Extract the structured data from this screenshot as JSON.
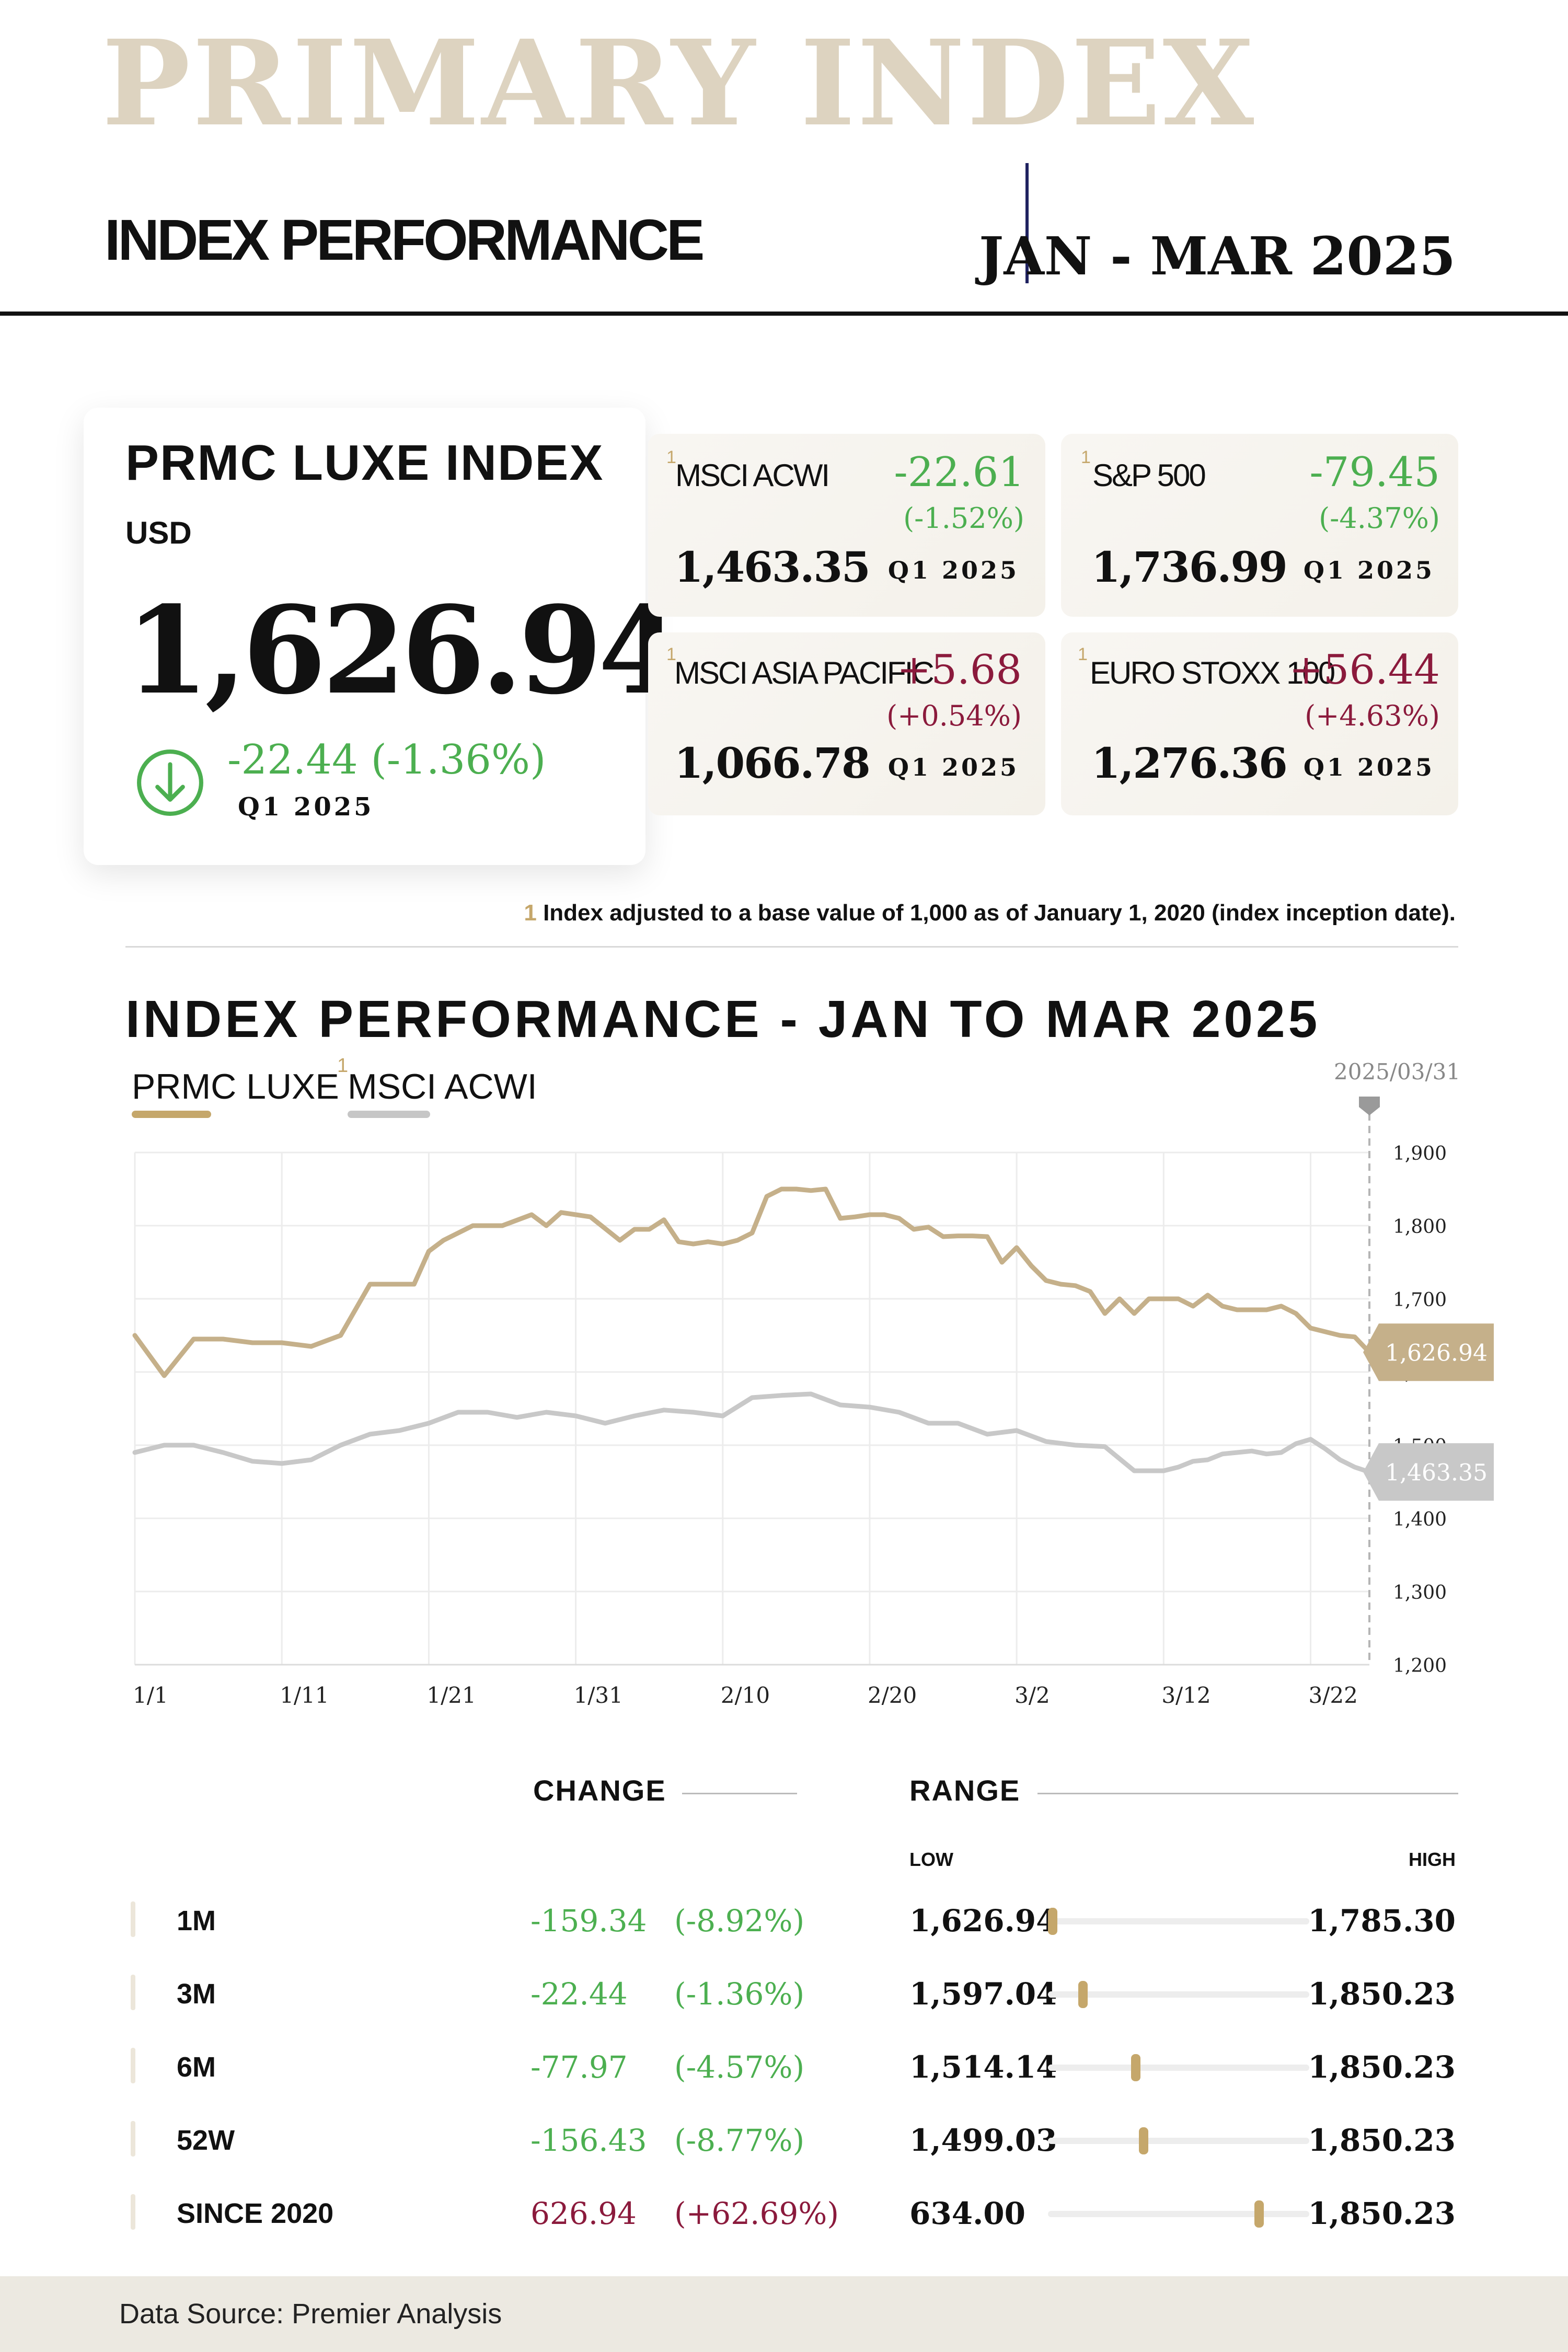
{
  "header": {
    "brand": "PRIMARY INDEX",
    "subtitle": "INDEX PERFORMANCE",
    "period": "JAN - MAR 2025"
  },
  "main_index": {
    "name": "PRMC LUXE INDEX",
    "currency": "USD",
    "value": "1,626.94",
    "change": "-22.44 (-1.36%)",
    "period": "Q1 2025",
    "arrow_icon": "arrow-down-circle-icon",
    "change_color": "#4caf50"
  },
  "cards": [
    {
      "sup": "1",
      "name": "MSCI ACWI",
      "change": "-22.61",
      "pct": "(-1.52%)",
      "value": "1,463.35",
      "period": "Q1 2025",
      "direction": "down"
    },
    {
      "sup": "1",
      "name": "S&P 500",
      "change": "-79.45",
      "pct": "(-4.37%)",
      "value": "1,736.99",
      "period": "Q1 2025",
      "direction": "down"
    },
    {
      "sup": "1",
      "name": "MSCI ASIA PACIFIC",
      "change": "+5.68",
      "pct": "(+0.54%)",
      "value": "1,066.78",
      "period": "Q1 2025",
      "direction": "up"
    },
    {
      "sup": "1",
      "name": "EURO STOXX 100",
      "change": "+56.44",
      "pct": "(+4.63%)",
      "value": "1,276.36",
      "period": "Q1 2025",
      "direction": "up"
    }
  ],
  "footnote": {
    "num": "1",
    "text": " Index adjusted to a base value of 1,000 as of January 1, 2020 (index inception date)."
  },
  "chart_section": {
    "title": "INDEX PERFORMANCE - JAN TO MAR 2025",
    "legend_a": "PRMC LUXE",
    "legend_b_sup": "1",
    "legend_b": "MSCI ACWI",
    "date_tag": "2025/03/31"
  },
  "chart_data": {
    "type": "line",
    "title": "INDEX PERFORMANCE - JAN TO MAR 2025",
    "xlabel": "",
    "ylabel": "",
    "ylim": [
      1200,
      1900
    ],
    "xlim": [
      1,
      85
    ],
    "yticks": [
      1200,
      1300,
      1400,
      1500,
      1600,
      1700,
      1800,
      1900
    ],
    "ytick_labels": [
      "1,200",
      "1,300",
      "1,400",
      "1,500",
      "1,600",
      "1,700",
      "1,800",
      "1,900"
    ],
    "xticks": [
      1,
      11,
      21,
      31,
      41,
      51,
      61,
      71,
      81
    ],
    "xtick_labels": [
      "1/1",
      "1/11",
      "1/21",
      "1/31",
      "2/10",
      "2/20",
      "3/2",
      "3/12",
      "3/22"
    ],
    "grid": true,
    "legend": "top-left",
    "marker_date": "2025/03/31",
    "series": [
      {
        "name": "PRMC LUXE",
        "color": "#c5b08a",
        "end_label": "1,626.94",
        "x": [
          1,
          3,
          5,
          7,
          9,
          11,
          13,
          15,
          17,
          18,
          20,
          21,
          22,
          24,
          26,
          28,
          29,
          30,
          31,
          32,
          34,
          35,
          36,
          37,
          38,
          39,
          40,
          41,
          42,
          43,
          44,
          45,
          46,
          47,
          48,
          49,
          50,
          51,
          52,
          53,
          54,
          55,
          56,
          57,
          58,
          59,
          60,
          61,
          62,
          63,
          64,
          65,
          66,
          67,
          68,
          69,
          70,
          71,
          72,
          73,
          74,
          75,
          76,
          77,
          78,
          79,
          80,
          81,
          82,
          83,
          84,
          85
        ],
        "y": [
          1650,
          1595,
          1645,
          1645,
          1640,
          1640,
          1635,
          1650,
          1720,
          1720,
          1720,
          1765,
          1780,
          1800,
          1800,
          1815,
          1800,
          1818,
          1815,
          1812,
          1780,
          1795,
          1795,
          1808,
          1778,
          1775,
          1778,
          1775,
          1780,
          1790,
          1840,
          1850,
          1850,
          1848,
          1850,
          1810,
          1812,
          1815,
          1815,
          1810,
          1795,
          1798,
          1785,
          1786,
          1786,
          1785,
          1750,
          1770,
          1745,
          1725,
          1720,
          1718,
          1710,
          1680,
          1700,
          1680,
          1700,
          1700,
          1700,
          1690,
          1705,
          1690,
          1685,
          1685,
          1685,
          1690,
          1680,
          1660,
          1655,
          1650,
          1648,
          1626.94
        ]
      },
      {
        "name": "MSCI ACWI",
        "color": "#c8c8c8",
        "end_label": "1,463.35",
        "x": [
          1,
          3,
          5,
          7,
          9,
          11,
          13,
          15,
          17,
          19,
          21,
          23,
          25,
          27,
          29,
          31,
          33,
          35,
          37,
          39,
          41,
          43,
          45,
          47,
          49,
          51,
          53,
          55,
          57,
          59,
          61,
          63,
          65,
          67,
          69,
          71,
          72,
          73,
          74,
          75,
          76,
          77,
          78,
          79,
          80,
          81,
          82,
          83,
          84,
          85
        ],
        "y": [
          1490,
          1500,
          1500,
          1490,
          1478,
          1475,
          1480,
          1500,
          1515,
          1520,
          1530,
          1545,
          1545,
          1538,
          1545,
          1540,
          1530,
          1540,
          1548,
          1545,
          1540,
          1565,
          1568,
          1570,
          1555,
          1552,
          1545,
          1530,
          1530,
          1515,
          1520,
          1505,
          1500,
          1498,
          1465,
          1465,
          1470,
          1478,
          1480,
          1488,
          1490,
          1492,
          1488,
          1490,
          1502,
          1508,
          1495,
          1480,
          1470,
          1463.35
        ]
      }
    ]
  },
  "table": {
    "change_header": "CHANGE",
    "range_header": "RANGE",
    "low_label": "LOW",
    "high_label": "HIGH",
    "rows": [
      {
        "label": "1M",
        "change": "-159.34",
        "pct": "(-8.92%)",
        "direction": "down",
        "low": "1,626.94",
        "high": "1,785.30",
        "position": 0.0
      },
      {
        "label": "3M",
        "change": "-22.44",
        "pct": "(-1.36%)",
        "direction": "down",
        "low": "1,597.04",
        "high": "1,850.23",
        "position": 0.12
      },
      {
        "label": "6M",
        "change": "-77.97",
        "pct": "(-4.57%)",
        "direction": "down",
        "low": "1,514.14",
        "high": "1,850.23",
        "position": 0.33
      },
      {
        "label": "52W",
        "change": "-156.43",
        "pct": "(-8.77%)",
        "direction": "down",
        "low": "1,499.03",
        "high": "1,850.23",
        "position": 0.36
      },
      {
        "label": "SINCE 2020",
        "change": "626.94",
        "pct": "(+62.69%)",
        "direction": "up",
        "low": "634.00",
        "high": "1,850.23",
        "position": 0.82
      }
    ]
  },
  "footer": {
    "text": "Data Source: Premier Analysis"
  }
}
